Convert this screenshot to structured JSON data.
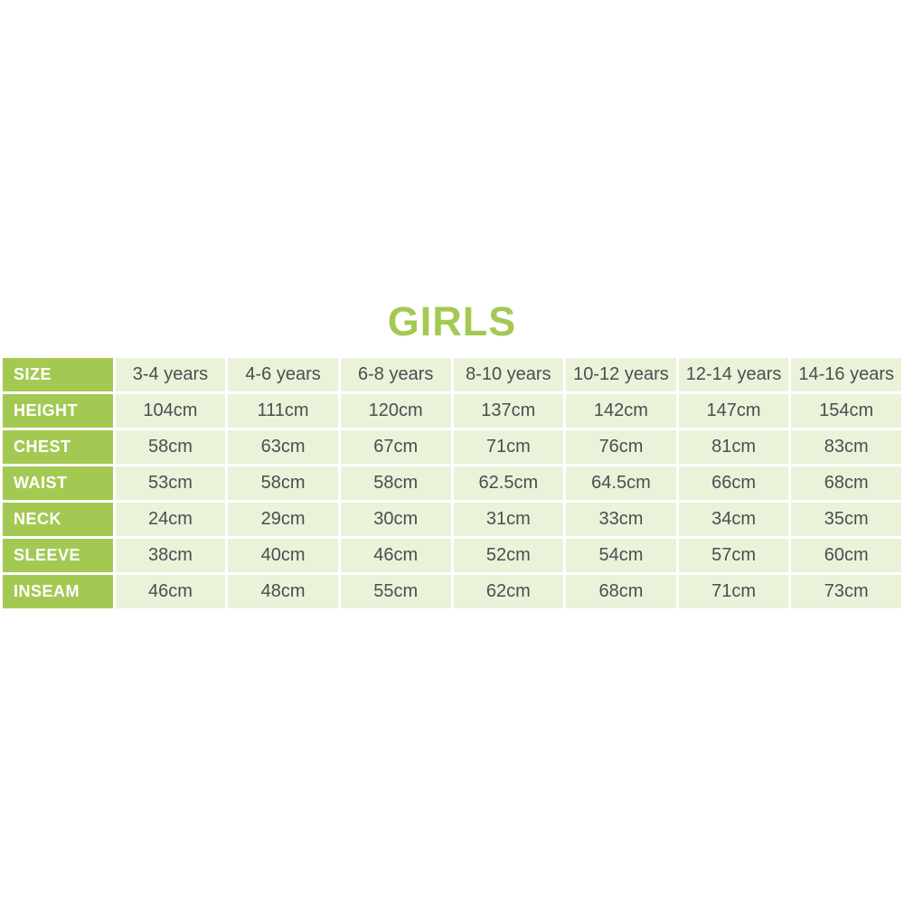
{
  "colors": {
    "accent_green": "#a4c953",
    "cell_background": "#eaf3da",
    "cell_text": "#4d4d4f",
    "header_text": "#ffffff",
    "page_background": "#ffffff"
  },
  "chart_data": {
    "type": "table",
    "title": "GIRLS",
    "row_headers": [
      "SIZE",
      "HEIGHT",
      "CHEST",
      "WAIST",
      "NECK",
      "SLEEVE",
      "INSEAM"
    ],
    "columns": [
      "3-4 years",
      "4-6 years",
      "6-8 years",
      "8-10 years",
      "10-12 years",
      "12-14 years",
      "14-16 years"
    ],
    "rows": [
      {
        "label": "SIZE",
        "values": [
          "3-4 years",
          "4-6 years",
          "6-8 years",
          "8-10 years",
          "10-12 years",
          "12-14 years",
          "14-16 years"
        ]
      },
      {
        "label": "HEIGHT",
        "values": [
          "104cm",
          "111cm",
          "120cm",
          "137cm",
          "142cm",
          "147cm",
          "154cm"
        ]
      },
      {
        "label": "CHEST",
        "values": [
          "58cm",
          "63cm",
          "67cm",
          "71cm",
          "76cm",
          "81cm",
          "83cm"
        ]
      },
      {
        "label": "WAIST",
        "values": [
          "53cm",
          "58cm",
          "58cm",
          "62.5cm",
          "64.5cm",
          "66cm",
          "68cm"
        ]
      },
      {
        "label": "NECK",
        "values": [
          "24cm",
          "29cm",
          "30cm",
          "31cm",
          "33cm",
          "34cm",
          "35cm"
        ]
      },
      {
        "label": "SLEEVE",
        "values": [
          "38cm",
          "40cm",
          "46cm",
          "52cm",
          "54cm",
          "57cm",
          "60cm"
        ]
      },
      {
        "label": "INSEAM",
        "values": [
          "46cm",
          "48cm",
          "55cm",
          "62cm",
          "68cm",
          "71cm",
          "73cm"
        ]
      }
    ]
  }
}
